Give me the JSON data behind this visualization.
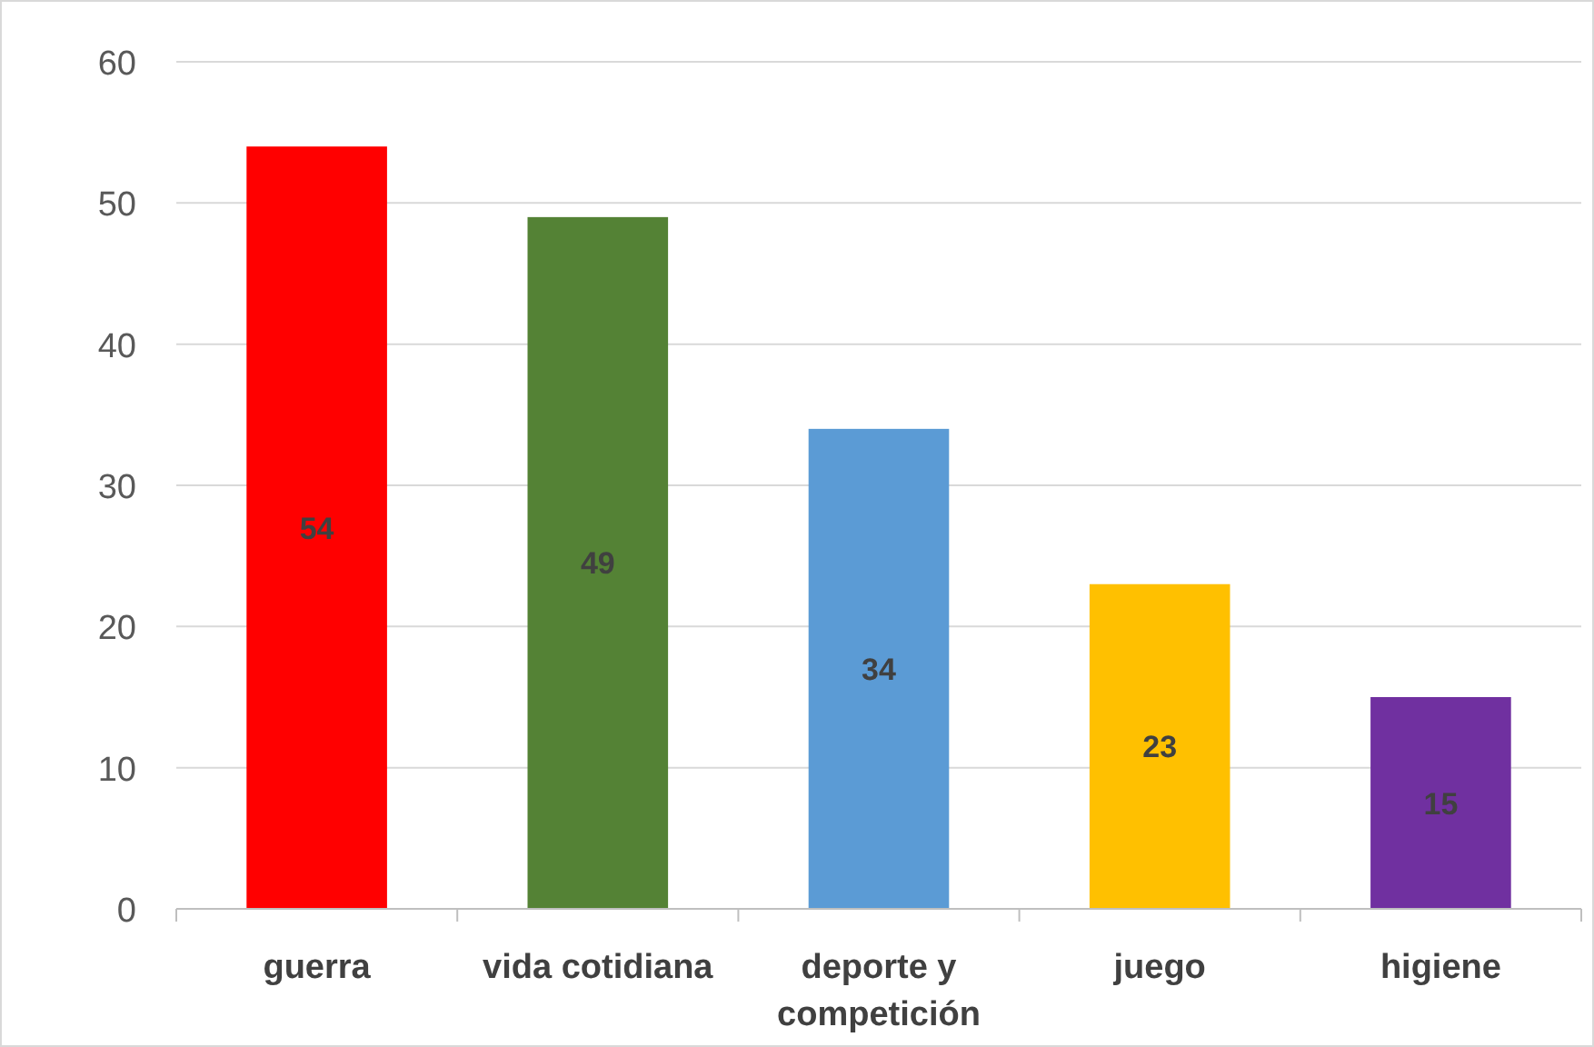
{
  "chart_data": {
    "type": "bar",
    "categories": [
      "guerra",
      "vida cotidiana",
      "deporte y competición",
      "juego",
      "higiene"
    ],
    "values": [
      54,
      49,
      34,
      23,
      15
    ],
    "colors": [
      "#ff0000",
      "#548235",
      "#5b9bd5",
      "#ffc000",
      "#7030a0"
    ],
    "ylim": [
      0,
      60
    ],
    "yticks": [
      0,
      10,
      20,
      30,
      40,
      50,
      60
    ],
    "grid": "y",
    "data_labels": true
  }
}
